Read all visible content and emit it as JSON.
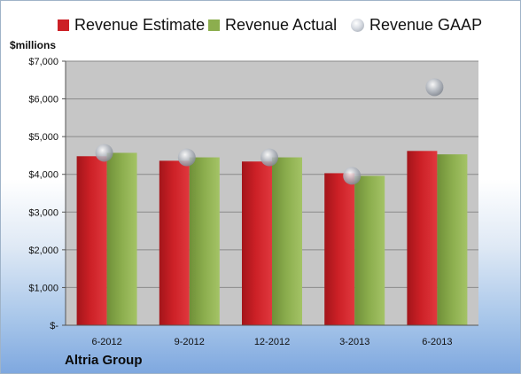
{
  "unit_label": "$millions",
  "company": "Altria Group",
  "colors": {
    "estimate": "#cc2026",
    "actual": "#8cae4e",
    "gaap": "#b7bcc4",
    "plot_bg": "#c6c6c6"
  },
  "chart_data": {
    "type": "bar",
    "categories": [
      "6-2012",
      "9-2012",
      "12-2012",
      "3-2013",
      "6-2013"
    ],
    "series": [
      {
        "name": "Revenue Estimate",
        "kind": "bar",
        "values": [
          4480,
          4360,
          4340,
          4030,
          4620
        ]
      },
      {
        "name": "Revenue Actual",
        "kind": "bar",
        "values": [
          4570,
          4450,
          4450,
          3960,
          4530
        ]
      },
      {
        "name": "Revenue GAAP",
        "kind": "marker",
        "values": [
          4570,
          4450,
          4450,
          3960,
          6310
        ]
      }
    ],
    "ylim": [
      0,
      7000
    ],
    "yticks": [
      0,
      1000,
      2000,
      3000,
      4000,
      5000,
      6000,
      7000
    ],
    "ytick_labels": [
      "$-",
      "$1,000",
      "$2,000",
      "$3,000",
      "$4,000",
      "$5,000",
      "$6,000",
      "$7,000"
    ],
    "grid": true,
    "legend": "top"
  }
}
